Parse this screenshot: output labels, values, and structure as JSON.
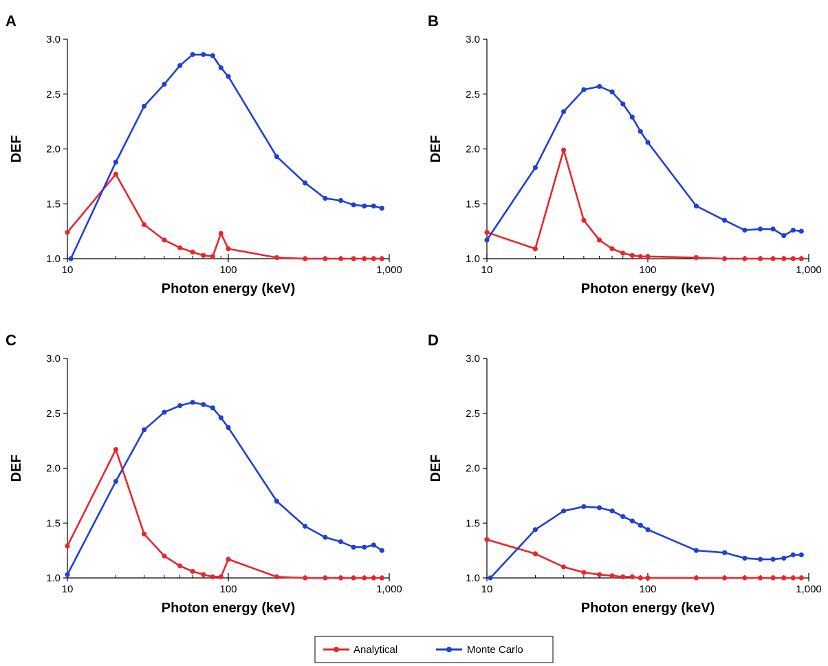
{
  "legend": {
    "items": [
      {
        "label": "Analytical",
        "color": "#e8262b"
      },
      {
        "label": "Monte Carlo",
        "color": "#1f3fd6"
      }
    ]
  },
  "chart_data": [
    {
      "panel": "A",
      "type": "line",
      "xlabel": "Photon energy (keV)",
      "ylabel": "DEF",
      "xscale": "log",
      "xlim": [
        10,
        1000
      ],
      "ylim": [
        1.0,
        3.0
      ],
      "xticks": [
        "10",
        "100",
        "1,000"
      ],
      "yticks": [
        "1.0",
        "1.5",
        "2.0",
        "2.5",
        "3.0"
      ],
      "series": [
        {
          "name": "Analytical",
          "color": "#e8262b",
          "x": [
            10,
            20,
            30,
            40,
            50,
            60,
            70,
            80,
            90,
            100,
            200,
            300,
            400,
            500,
            600,
            700,
            800,
            900
          ],
          "y": [
            1.24,
            1.77,
            1.31,
            1.17,
            1.1,
            1.06,
            1.03,
            1.02,
            1.23,
            1.09,
            1.01,
            1.0,
            1.0,
            1.0,
            1.0,
            1.0,
            1.0,
            1.0
          ]
        },
        {
          "name": "Monte Carlo",
          "color": "#1f3fd6",
          "x": [
            10.5,
            20,
            30,
            40,
            50,
            60,
            70,
            80,
            90,
            100,
            200,
            300,
            400,
            500,
            600,
            700,
            800,
            900
          ],
          "y": [
            1.0,
            1.88,
            2.39,
            2.59,
            2.76,
            2.86,
            2.86,
            2.85,
            2.74,
            2.66,
            1.93,
            1.69,
            1.55,
            1.53,
            1.49,
            1.48,
            1.48,
            1.46
          ]
        }
      ]
    },
    {
      "panel": "B",
      "type": "line",
      "xlabel": "Photon energy (keV)",
      "ylabel": "DEF",
      "xscale": "log",
      "xlim": [
        10,
        1000
      ],
      "ylim": [
        1.0,
        3.0
      ],
      "xticks": [
        "10",
        "100",
        "1,000"
      ],
      "yticks": [
        "1.0",
        "1.5",
        "2.0",
        "2.5",
        "3.0"
      ],
      "series": [
        {
          "name": "Analytical",
          "color": "#e8262b",
          "x": [
            10,
            20,
            30,
            40,
            50,
            60,
            70,
            80,
            90,
            100,
            200,
            300,
            400,
            500,
            600,
            700,
            800,
            900
          ],
          "y": [
            1.24,
            1.09,
            1.99,
            1.35,
            1.17,
            1.09,
            1.05,
            1.03,
            1.02,
            1.02,
            1.01,
            1.0,
            1.0,
            1.0,
            1.0,
            1.0,
            1.0,
            1.0
          ]
        },
        {
          "name": "Monte Carlo",
          "color": "#1f3fd6",
          "x": [
            10,
            20,
            30,
            40,
            50,
            60,
            70,
            80,
            90,
            100,
            200,
            300,
            400,
            500,
            600,
            700,
            800,
            900
          ],
          "y": [
            1.17,
            1.83,
            2.34,
            2.54,
            2.57,
            2.52,
            2.41,
            2.29,
            2.16,
            2.06,
            1.48,
            1.35,
            1.26,
            1.27,
            1.27,
            1.21,
            1.26,
            1.25
          ]
        }
      ]
    },
    {
      "panel": "C",
      "type": "line",
      "xlabel": "Photon energy (keV)",
      "ylabel": "DEF",
      "xscale": "log",
      "xlim": [
        10,
        1000
      ],
      "ylim": [
        1.0,
        3.0
      ],
      "xticks": [
        "10",
        "100",
        "1,000"
      ],
      "yticks": [
        "1.0",
        "1.5",
        "2.0",
        "2.5",
        "3.0"
      ],
      "series": [
        {
          "name": "Analytical",
          "color": "#e8262b",
          "x": [
            10,
            20,
            30,
            40,
            50,
            60,
            70,
            80,
            90,
            100,
            200,
            300,
            400,
            500,
            600,
            700,
            800,
            900
          ],
          "y": [
            1.29,
            2.17,
            1.4,
            1.2,
            1.11,
            1.06,
            1.03,
            1.01,
            1.01,
            1.17,
            1.01,
            1.0,
            1.0,
            1.0,
            1.0,
            1.0,
            1.0,
            1.0
          ]
        },
        {
          "name": "Monte Carlo",
          "color": "#1f3fd6",
          "x": [
            10,
            20,
            30,
            40,
            50,
            60,
            70,
            80,
            90,
            100,
            200,
            300,
            400,
            500,
            600,
            700,
            800,
            900
          ],
          "y": [
            1.03,
            1.88,
            2.35,
            2.51,
            2.57,
            2.6,
            2.58,
            2.55,
            2.46,
            2.37,
            1.7,
            1.47,
            1.37,
            1.33,
            1.28,
            1.28,
            1.3,
            1.25
          ]
        }
      ]
    },
    {
      "panel": "D",
      "type": "line",
      "xlabel": "Photon energy (keV)",
      "ylabel": "DEF",
      "xscale": "log",
      "xlim": [
        10,
        1000
      ],
      "ylim": [
        1.0,
        3.0
      ],
      "xticks": [
        "10",
        "100",
        "1,000"
      ],
      "yticks": [
        "1.0",
        "1.5",
        "2.0",
        "2.5",
        "3.0"
      ],
      "series": [
        {
          "name": "Analytical",
          "color": "#e8262b",
          "x": [
            10,
            20,
            30,
            40,
            50,
            60,
            70,
            80,
            90,
            100,
            200,
            300,
            400,
            500,
            600,
            700,
            800,
            900
          ],
          "y": [
            1.35,
            1.22,
            1.1,
            1.05,
            1.03,
            1.02,
            1.01,
            1.01,
            1.0,
            1.0,
            1.0,
            1.0,
            1.0,
            1.0,
            1.0,
            1.0,
            1.0,
            1.0
          ]
        },
        {
          "name": "Monte Carlo",
          "color": "#1f3fd6",
          "x": [
            10.5,
            20,
            30,
            40,
            50,
            60,
            70,
            80,
            90,
            100,
            200,
            300,
            400,
            500,
            600,
            700,
            800,
            900
          ],
          "y": [
            1.0,
            1.44,
            1.61,
            1.65,
            1.64,
            1.61,
            1.56,
            1.52,
            1.48,
            1.44,
            1.25,
            1.23,
            1.18,
            1.17,
            1.17,
            1.18,
            1.21,
            1.21
          ]
        }
      ]
    }
  ]
}
